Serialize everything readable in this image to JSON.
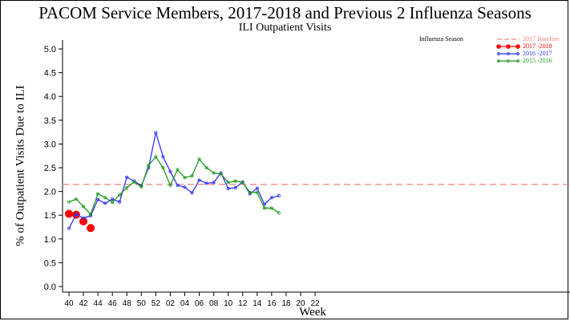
{
  "chart_data": {
    "type": "line",
    "title": "PACOM Service Members, 2017-2018 and Previous 2 Influenza Seasons",
    "subtitle": "ILI Outpatient Visits",
    "xlabel": "Week",
    "ylabel": "% of Outpatient Visits Due to ILI",
    "ylim": [
      0.0,
      5.0
    ],
    "yticks": [
      "0.0",
      "0.5",
      "1.0",
      "1.5",
      "2.0",
      "2.5",
      "3.0",
      "3.5",
      "4.0",
      "4.5",
      "5.0"
    ],
    "xticks": [
      "40",
      "42",
      "44",
      "46",
      "48",
      "50",
      "52",
      "02",
      "04",
      "06",
      "08",
      "10",
      "12",
      "14",
      "16",
      "18",
      "20",
      "22"
    ],
    "legend_title": "Influenza Season",
    "legend_placement": "top-right",
    "grid": false,
    "baseline": {
      "name": "2017 Baseline",
      "value": 2.15,
      "color": "#f08080"
    },
    "series": [
      {
        "name": "2017 -2018",
        "color": "#ff0000",
        "x": [
          40,
          41,
          42,
          43
        ],
        "values": [
          1.53,
          1.51,
          1.37,
          1.23
        ]
      },
      {
        "name": "2016 -2017",
        "color": "#3333ff",
        "x": [
          40,
          41,
          42,
          43,
          44,
          45,
          46,
          47,
          48,
          49,
          50,
          51,
          52,
          53,
          54,
          55,
          56,
          57,
          58,
          59,
          60,
          61,
          62,
          63,
          64,
          65,
          66,
          67,
          68,
          69
        ],
        "values": [
          1.22,
          1.52,
          1.44,
          1.49,
          1.83,
          1.75,
          1.84,
          1.78,
          2.3,
          2.22,
          2.12,
          2.5,
          3.24,
          2.73,
          2.42,
          2.13,
          2.09,
          1.97,
          2.24,
          2.17,
          2.19,
          2.39,
          2.06,
          2.08,
          2.2,
          1.95,
          2.07,
          1.73,
          1.87,
          1.91
        ]
      },
      {
        "name": "2015 -2016",
        "color": "#229922",
        "x": [
          40,
          41,
          42,
          43,
          44,
          45,
          46,
          47,
          48,
          49,
          50,
          51,
          52,
          53,
          54,
          55,
          56,
          57,
          58,
          59,
          60,
          61,
          62,
          63,
          64,
          65,
          66,
          67,
          68,
          69
        ],
        "values": [
          1.78,
          1.84,
          1.68,
          1.52,
          1.95,
          1.87,
          1.77,
          1.93,
          2.08,
          2.2,
          2.1,
          2.55,
          2.73,
          2.5,
          2.13,
          2.46,
          2.29,
          2.33,
          2.68,
          2.5,
          2.39,
          2.37,
          2.19,
          2.22,
          2.19,
          1.98,
          1.98,
          1.65,
          1.65,
          1.55
        ]
      }
    ]
  }
}
